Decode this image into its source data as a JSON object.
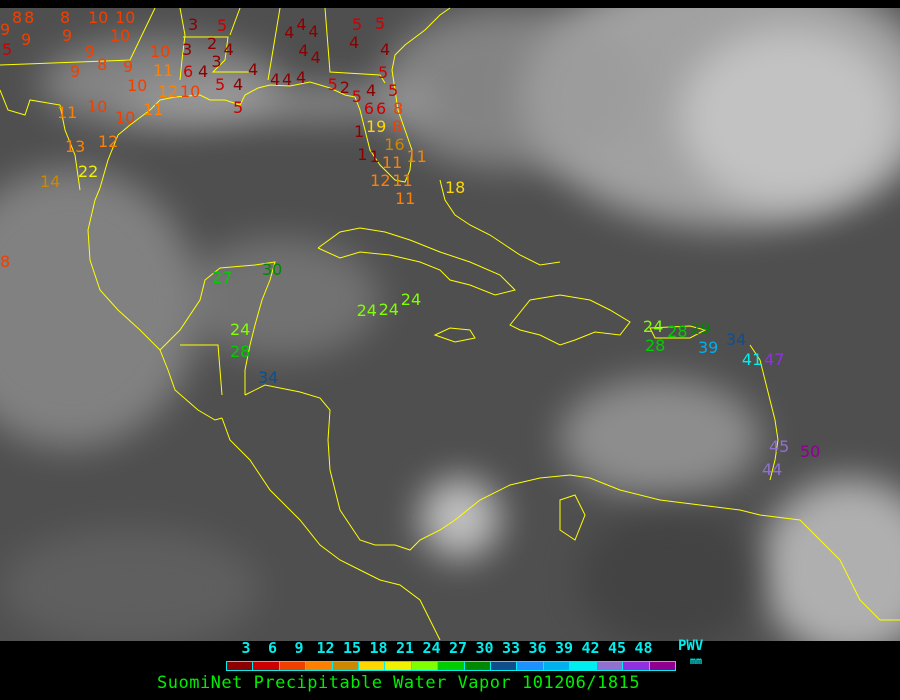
{
  "title": "SuomiNet Precipitable Water Vapor 101206/1815",
  "legend": {
    "unit_label": "PWV",
    "unit": "mm",
    "ticks": [
      "3",
      "6",
      "9",
      "12",
      "15",
      "18",
      "21",
      "24",
      "27",
      "30",
      "33",
      "36",
      "39",
      "42",
      "45",
      "48"
    ],
    "colors": [
      "#8b0000",
      "#cc0000",
      "#f04000",
      "#ff8000",
      "#cc8800",
      "#ffd700",
      "#f0f000",
      "#80ff00",
      "#00cc00",
      "#008800",
      "#104e8b",
      "#1e90ff",
      "#00b0ee",
      "#00eeee",
      "#9070d0",
      "#9030e0",
      "#900090"
    ]
  },
  "coastline_color": "#ffff00",
  "stations": [
    "8",
    "8",
    "9",
    "9",
    "5",
    "8",
    "9",
    "10",
    "10",
    "10",
    "9",
    "8",
    "9",
    "9",
    "10",
    "10",
    "11",
    "6",
    "4",
    "12",
    "10",
    "11",
    "10",
    "10",
    "11",
    "13",
    "12",
    "22",
    "14",
    "3",
    "5",
    "3",
    "2",
    "3",
    "4",
    "5",
    "4",
    "5",
    "4",
    "4",
    "4",
    "4",
    "4",
    "4",
    "4",
    "4",
    "4",
    "5",
    "5",
    "4",
    "4",
    "5",
    "2",
    "5",
    "4",
    "5",
    "5",
    "6",
    "6",
    "8",
    "8",
    "1",
    "19",
    "1",
    "1",
    "16",
    "11",
    "11",
    "12",
    "11",
    "11",
    "18",
    "8",
    "27",
    "30",
    "24",
    "28",
    "34",
    "24",
    "24",
    "24",
    "24",
    "28",
    "29",
    "28",
    "39",
    "34",
    "41",
    "47",
    "45",
    "50",
    "44"
  ]
}
